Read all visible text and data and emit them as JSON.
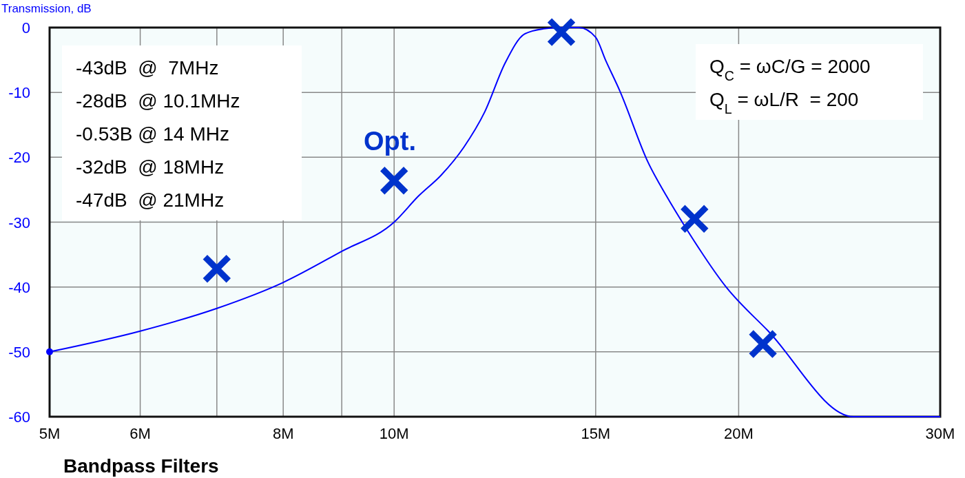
{
  "chart_data": {
    "type": "line",
    "ylabel": "Transmission, dB",
    "x": [
      5,
      6,
      7,
      8,
      9,
      10,
      10.5,
      11,
      11.5,
      12,
      12.5,
      13,
      13.5,
      14,
      14.5,
      15,
      15.3,
      15.75,
      16.67,
      17.3,
      18,
      19.5,
      21.2,
      25.2,
      30
    ],
    "series": [
      {
        "color": "#0000ff",
        "marker": "none",
        "values": [
          -50,
          -46.8,
          -43.3,
          -39.3,
          -34.5,
          -30,
          -26,
          -22.7,
          -18.5,
          -13,
          -5.5,
          -1,
          -0.2,
          0,
          0,
          -1.5,
          -5,
          -9.8,
          -20.8,
          -26,
          -31,
          -40,
          -46.7,
          -60,
          -60
        ]
      },
      {
        "type": "scatter",
        "color": "#0033cc",
        "marker": "cross",
        "x": [
          7,
          10,
          14,
          18.3,
          21
        ],
        "values": [
          -37.2,
          -23.6,
          -0.7,
          -29.5,
          -48.8
        ]
      },
      {
        "type": "scatter",
        "color": "#0000ff",
        "marker": "circle",
        "x": [
          5
        ],
        "values": [
          -50
        ]
      }
    ],
    "log": "x",
    "xlim": [
      5,
      30
    ],
    "xticks": [
      {
        "value": 5,
        "label": "5M"
      },
      {
        "value": 6,
        "label": "6M"
      },
      {
        "value": 7,
        "label": null
      },
      {
        "value": 8,
        "label": "8M"
      },
      {
        "value": 9,
        "label": null
      },
      {
        "value": 10,
        "label": "10M"
      },
      {
        "value": 15,
        "label": "15M"
      },
      {
        "value": 20,
        "label": "20M"
      },
      {
        "value": 30,
        "label": "30M"
      }
    ],
    "ylim": [
      -60,
      0
    ],
    "yticks": [
      -60,
      -50,
      -40,
      -30,
      -20,
      -10,
      0
    ],
    "grid": true,
    "annotations": [
      "-43dB  @  7MHz\n-28dB  @ 10.1MHz\n-0.53B @ 14 MHz\n-32dB  @ 18MHz\n-47dB  @ 21MHz",
      "Q$_{C}$ = ωC/G = 2000\nQ$_{L}$ = ωL/R  = 200",
      "Bandpass Filters",
      "Opt."
    ]
  }
}
